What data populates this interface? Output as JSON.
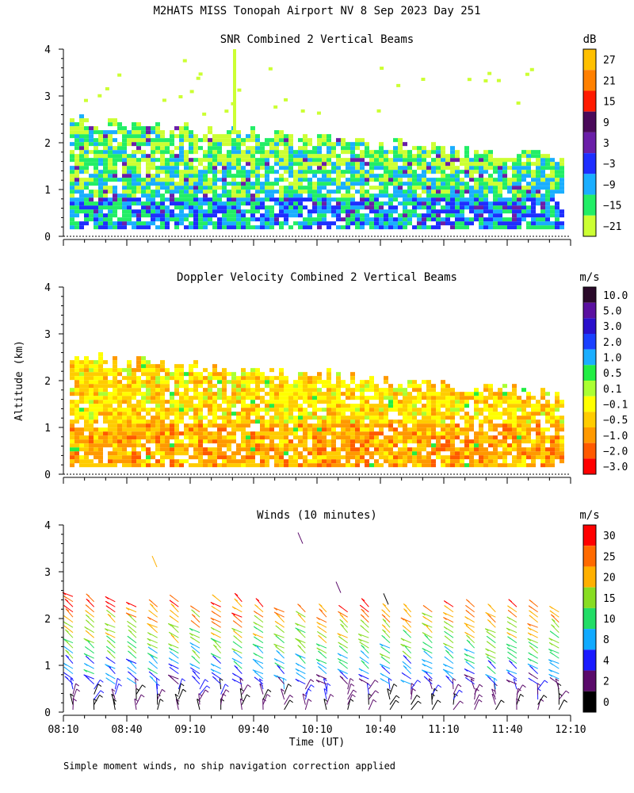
{
  "header": {
    "title": "M2HATS MISS Tonopah Airport NV   8 Sep 2023 Day 251"
  },
  "footer": {
    "note": "Simple moment winds, no ship navigation correction applied"
  },
  "chart_data": [
    {
      "type": "heatmap",
      "title": "SNR Combined 2 Vertical Beams",
      "ylabel": "",
      "colorbar_unit": "dB",
      "colorbar_labels": [
        "27",
        "21",
        "15",
        "9",
        "3",
        "−3",
        "−9",
        "−15",
        "−21"
      ],
      "colorbar_colors": [
        "#ffc000",
        "#ff8000",
        "#ff1a00",
        "#4a0a5a",
        "#6a1ea8",
        "#1e2eff",
        "#1aaeff",
        "#22ee66",
        "#ccff33"
      ],
      "ylim": [
        0,
        4
      ],
      "yticks": [
        "0",
        "1",
        "2",
        "3",
        "4"
      ],
      "xlim": [
        "08:10",
        "12:10"
      ]
    },
    {
      "type": "heatmap",
      "title": "Doppler Velocity Combined 2 Vertical Beams",
      "ylabel": "Altitude (km)",
      "colorbar_unit": "m/s",
      "colorbar_labels": [
        "10.0",
        "5.0",
        "3.0",
        "2.0",
        "1.0",
        "0.5",
        "0.1",
        "−0.1",
        "−0.5",
        "−1.0",
        "−2.0",
        "−3.0"
      ],
      "colorbar_colors": [
        "#2a0a2a",
        "#5a10a0",
        "#2a10cc",
        "#1a40ff",
        "#1aaeff",
        "#22ee44",
        "#aaff33",
        "#ffff00",
        "#ffcc00",
        "#ff9900",
        "#ff5a00",
        "#ff0000"
      ],
      "ylim": [
        0,
        4
      ],
      "yticks": [
        "0",
        "1",
        "2",
        "3",
        "4"
      ],
      "xlim": [
        "08:10",
        "12:10"
      ]
    },
    {
      "type": "scatter",
      "title": "Winds (10 minutes)",
      "ylabel": "",
      "xlabel": "Time (UT)",
      "colorbar_unit": "m/s",
      "colorbar_labels": [
        "30",
        "25",
        "20",
        "15",
        "10",
        "8",
        "4",
        "2",
        "0"
      ],
      "colorbar_colors": [
        "#ff0000",
        "#ff6a00",
        "#ffb000",
        "#88dd22",
        "#22dd66",
        "#11aaff",
        "#1a1aff",
        "#5a0a6a",
        "#000000"
      ],
      "ylim": [
        0,
        4
      ],
      "yticks": [
        "0",
        "1",
        "2",
        "3",
        "4"
      ],
      "xticks": [
        "08:10",
        "08:40",
        "09:10",
        "09:40",
        "10:10",
        "10:40",
        "11:10",
        "11:40",
        "12:10"
      ],
      "xlim": [
        "08:10",
        "12:10"
      ]
    }
  ]
}
